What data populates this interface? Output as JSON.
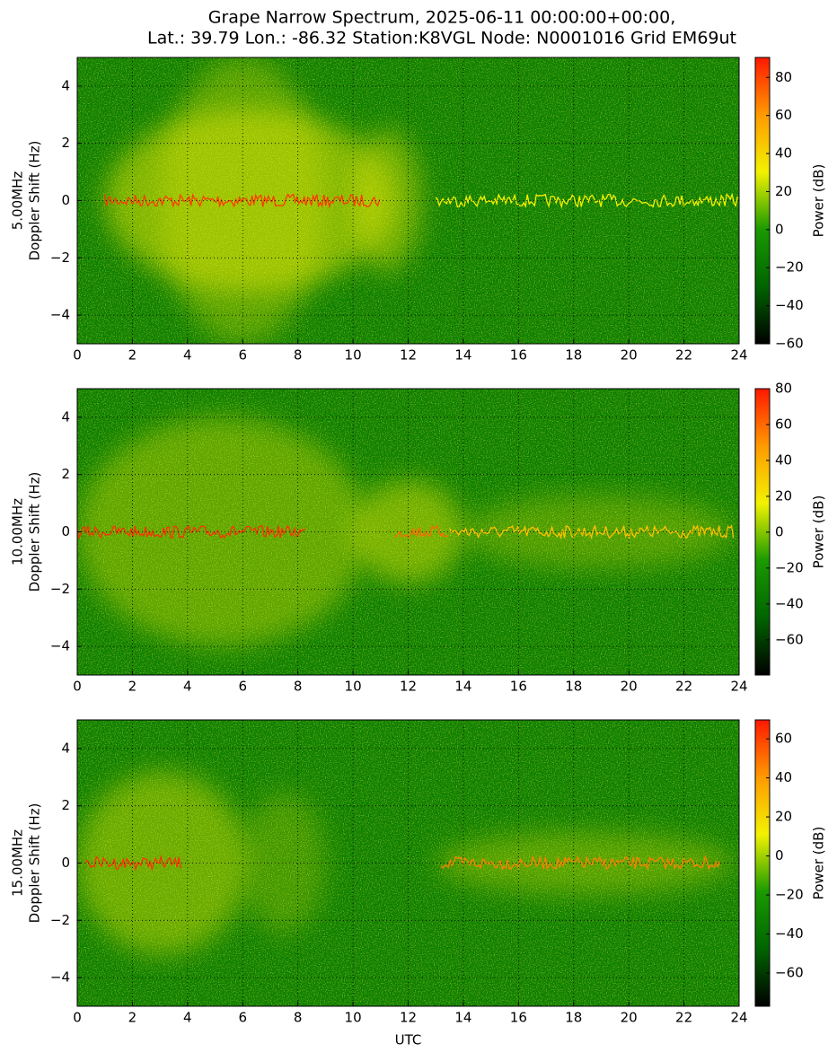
{
  "chart_data": [
    {
      "type": "spectrogram",
      "title": [
        "Grape Narrow Spectrum, 2025-06-11 00:00:00+00:00,",
        "Lat.: 39.79 Lon.: -86.32 Station:K8VGL Node: N0001016 Grid EM69ut"
      ],
      "ylabel": [
        "5.00MHz",
        "Doppler Shift (Hz)"
      ],
      "xlim": [
        0,
        24
      ],
      "xticks": [
        0,
        2,
        4,
        6,
        8,
        10,
        12,
        14,
        16,
        18,
        20,
        22,
        24
      ],
      "ylim": [
        -5,
        5
      ],
      "yticks": [
        {
          "value": -4,
          "label": "−4"
        },
        {
          "value": -2,
          "label": "−2"
        },
        0,
        2,
        4
      ],
      "grid": true,
      "colorbar": {
        "label": "Power (dB)",
        "lim": [
          -60,
          90.5
        ],
        "ticks": [
          {
            "value": -60,
            "label": "−60"
          },
          {
            "value": -40,
            "label": "−40"
          },
          {
            "value": -20,
            "label": "−20"
          },
          0,
          20,
          40,
          60,
          80
        ],
        "colors": [
          "#000000",
          "#006400",
          "#1a9a00",
          "#f2f200",
          "#ff9a00",
          "#ff1800"
        ]
      }
    },
    {
      "type": "spectrogram",
      "ylabel": [
        "10.00MHz",
        "Doppler Shift (Hz)"
      ],
      "xlim": [
        0,
        24
      ],
      "xticks": [
        0,
        2,
        4,
        6,
        8,
        10,
        12,
        14,
        16,
        18,
        20,
        22,
        24
      ],
      "ylim": [
        -5,
        5
      ],
      "yticks": [
        {
          "value": -4,
          "label": "−4"
        },
        {
          "value": -2,
          "label": "−2"
        },
        0,
        2,
        4
      ],
      "grid": true,
      "colorbar": {
        "label": "Power (dB)",
        "lim": [
          -79.6,
          80
        ],
        "ticks": [
          {
            "value": -60,
            "label": "−60"
          },
          {
            "value": -40,
            "label": "−40"
          },
          {
            "value": -20,
            "label": "−20"
          },
          0,
          20,
          40,
          60,
          80
        ],
        "colors": [
          "#000000",
          "#006400",
          "#1a9a00",
          "#f2f200",
          "#ff9a00",
          "#ff1800"
        ]
      }
    },
    {
      "type": "spectrogram",
      "ylabel": [
        "15.00MHz",
        "Doppler Shift (Hz)"
      ],
      "xlabel": "UTC",
      "xlim": [
        0,
        24
      ],
      "xticks": [
        0,
        2,
        4,
        6,
        8,
        10,
        12,
        14,
        16,
        18,
        20,
        22,
        24
      ],
      "ylim": [
        -5,
        5
      ],
      "yticks": [
        {
          "value": -4,
          "label": "−4"
        },
        {
          "value": -2,
          "label": "−2"
        },
        0,
        2,
        4
      ],
      "grid": true,
      "colorbar": {
        "label": "Power (dB)",
        "lim": [
          -77,
          69.7
        ],
        "ticks": [
          {
            "value": -60,
            "label": "−60"
          },
          {
            "value": -40,
            "label": "−40"
          },
          {
            "value": -20,
            "label": "−20"
          },
          0,
          20,
          40,
          60
        ],
        "colors": [
          "#000000",
          "#006400",
          "#1a9a00",
          "#f2f200",
          "#ff9a00",
          "#ff1800"
        ]
      }
    }
  ]
}
